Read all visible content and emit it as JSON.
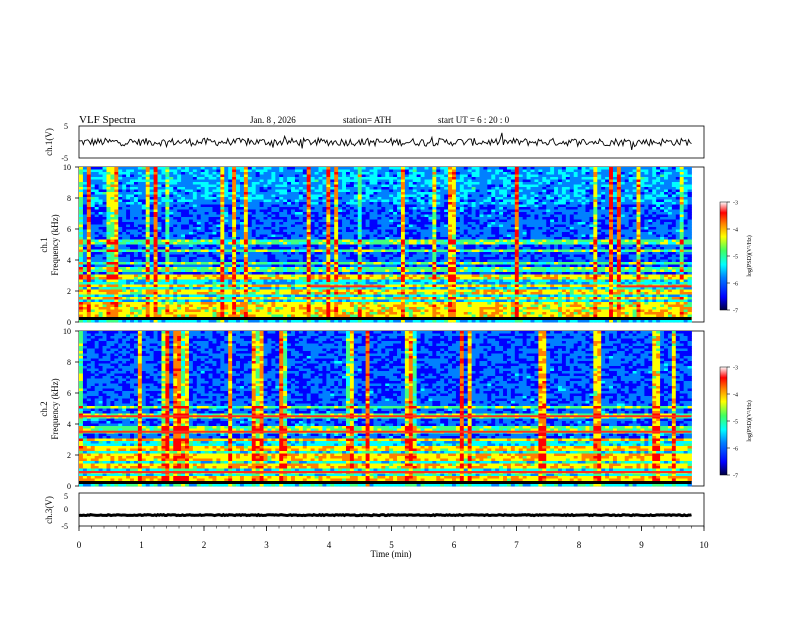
{
  "header": {
    "title": "VLF  Spectra",
    "date": "Jan.  8  , 2026",
    "station": "station= ATH",
    "start_time": "start  UT  =   6  : 20 : 0"
  },
  "chart_data": [
    {
      "type": "line",
      "ylabel": "ch.1(V)",
      "ylim": [
        -5,
        5
      ],
      "y_ticks": [
        "5",
        "-5"
      ],
      "xlim": [
        0,
        10
      ],
      "trace_color": "#000000",
      "trace_baseline": 0,
      "trace_noise_amplitude": 1.2
    },
    {
      "type": "heatmap",
      "ylabel_1": "ch.1",
      "ylabel_2": "Frequency  (kHz)",
      "ylim": [
        0,
        10
      ],
      "y_ticks": [
        "0",
        "2",
        "4",
        "6",
        "8",
        "10"
      ],
      "xlim": [
        0,
        9.8
      ],
      "colorbar": {
        "label": "log(PSD)(V²/Hz)",
        "range": [
          -7,
          -3
        ],
        "ticks": [
          "-3",
          "-4",
          "-5",
          "-6",
          "-7"
        ]
      },
      "persistent_bands_khz": [
        0.3,
        0.55,
        0.7,
        1.0,
        1.25,
        1.5,
        1.9,
        2.3,
        2.9,
        3.4,
        3.8,
        4.6,
        5.2
      ],
      "red_band_segments": [
        {
          "freq_khz": 2.3,
          "t_start_min": 3.7,
          "t_end_min": 4.9
        },
        {
          "freq_khz": 2.3,
          "t_start_min": 8.6,
          "t_end_min": 9.8
        }
      ]
    },
    {
      "type": "heatmap",
      "ylabel_1": "ch.2",
      "ylabel_2": "Frequency  (kHz)",
      "ylim": [
        0,
        10
      ],
      "y_ticks": [
        "0",
        "2",
        "4",
        "6",
        "8",
        "10"
      ],
      "xlim": [
        0,
        9.8
      ],
      "colorbar": {
        "label": "log(PSD)(V²/Hz)",
        "range": [
          -7,
          -3
        ],
        "ticks": [
          "-3",
          "-4",
          "-5",
          "-6",
          "-7"
        ]
      },
      "persistent_bands_khz": [
        0.5,
        0.9,
        1.3,
        1.8,
        2.0,
        2.4,
        3.0,
        3.5,
        3.7,
        4.5,
        5.1
      ],
      "red_band_segments": [
        {
          "freq_khz": 3.5,
          "t_start_min": 0.0,
          "t_end_min": 9.8
        },
        {
          "freq_khz": 4.5,
          "t_start_min": 0.0,
          "t_end_min": 9.8
        },
        {
          "freq_khz": 0.9,
          "t_start_min": 0.0,
          "t_end_min": 9.8
        }
      ]
    },
    {
      "type": "line",
      "ylabel": "ch.3(V)",
      "ylim": [
        -5,
        5
      ],
      "y_ticks": [
        "5",
        "0",
        "-5"
      ],
      "xlim": [
        0,
        10
      ],
      "trace_color": "#000000",
      "trace_baseline": -1.7,
      "trace_noise_amplitude": 0.15
    }
  ],
  "time_axis": {
    "label": "Time  (min)",
    "ticks": [
      "0",
      "1",
      "2",
      "3",
      "4",
      "5",
      "6",
      "7",
      "8",
      "9",
      "10"
    ],
    "range": [
      0,
      10
    ]
  },
  "colors": {
    "colormap": [
      "#000060",
      "#0000ff",
      "#0080ff",
      "#00ffff",
      "#40ff80",
      "#ffff00",
      "#ff8000",
      "#ff0000",
      "#ffffff"
    ]
  }
}
